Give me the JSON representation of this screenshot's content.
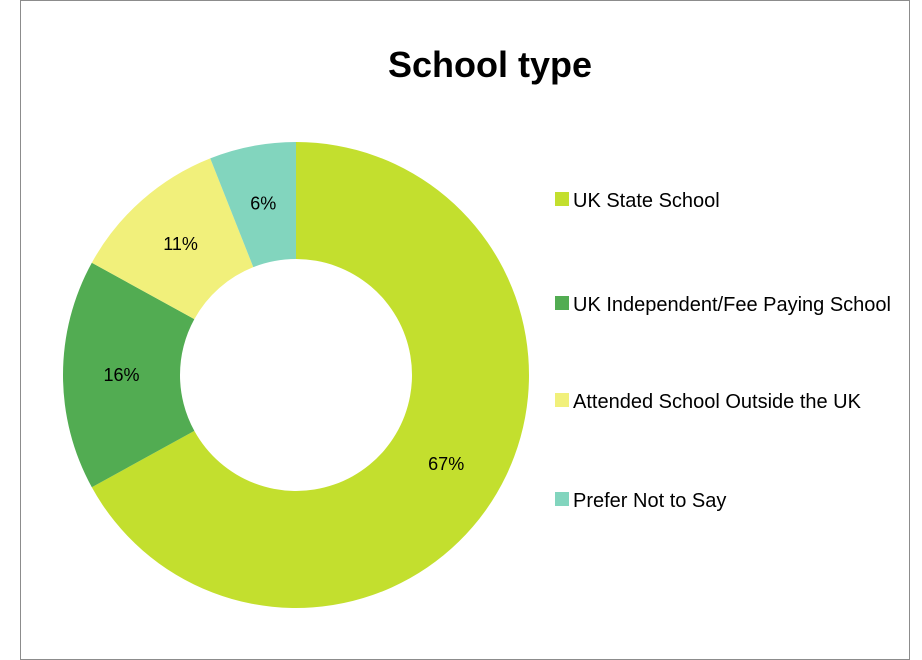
{
  "chart_data": {
    "type": "pie",
    "title": "School type",
    "categories": [
      "UK State School",
      "UK Independent/Fee Paying School",
      "Attended School Outside the UK",
      "Prefer Not to Say"
    ],
    "values": [
      67,
      16,
      11,
      6
    ],
    "data_labels": [
      "67%",
      "16%",
      "11%",
      "6%"
    ],
    "colors": [
      "#c3df2e",
      "#52ac52",
      "#f1f07b",
      "#82d5be"
    ],
    "donut": true,
    "legend_position": "right"
  }
}
